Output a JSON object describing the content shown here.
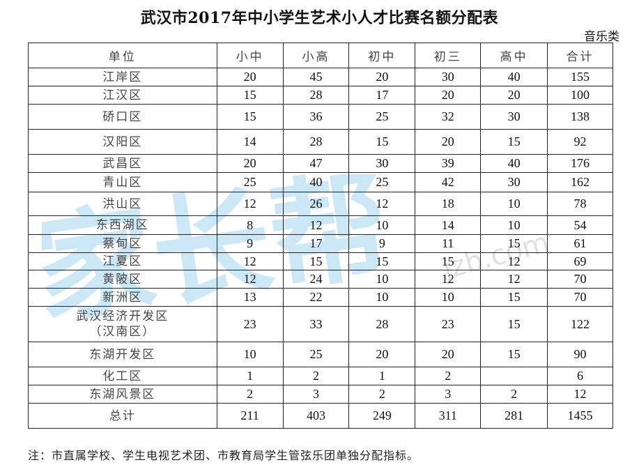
{
  "document": {
    "title": "武汉市2017年中小学生艺术小人才比赛名额分配表",
    "category": "音乐类",
    "note": "注：市直属学校、学生电视艺术团、市教育局学生管弦乐团单独分配指标。"
  },
  "table": {
    "headers": [
      "单位",
      "小中",
      "小高",
      "初中",
      "初三",
      "高中",
      "合计"
    ],
    "rows": [
      {
        "name": "江岸区",
        "values": [
          "20",
          "45",
          "20",
          "30",
          "40",
          "155"
        ]
      },
      {
        "name": "江汉区",
        "values": [
          "15",
          "28",
          "17",
          "20",
          "20",
          "100"
        ]
      },
      {
        "name": "硚口区",
        "values": [
          "15",
          "36",
          "25",
          "32",
          "30",
          "138"
        ]
      },
      {
        "name": "汉阳区",
        "values": [
          "14",
          "28",
          "15",
          "20",
          "15",
          "92"
        ]
      },
      {
        "name": "武昌区",
        "values": [
          "20",
          "47",
          "30",
          "39",
          "40",
          "176"
        ]
      },
      {
        "name": "青山区",
        "values": [
          "25",
          "40",
          "25",
          "42",
          "30",
          "162"
        ]
      },
      {
        "name": "洪山区",
        "values": [
          "12",
          "26",
          "12",
          "18",
          "10",
          "78"
        ]
      },
      {
        "name": "东西湖区",
        "values": [
          "8",
          "12",
          "10",
          "14",
          "10",
          "54"
        ]
      },
      {
        "name": "蔡甸区",
        "values": [
          "9",
          "17",
          "9",
          "11",
          "15",
          "61"
        ]
      },
      {
        "name": "江夏区",
        "values": [
          "12",
          "15",
          "15",
          "15",
          "12",
          "69"
        ]
      },
      {
        "name": "黄陂区",
        "values": [
          "12",
          "24",
          "10",
          "12",
          "12",
          "70"
        ]
      },
      {
        "name": "新洲区",
        "values": [
          "13",
          "22",
          "10",
          "10",
          "15",
          "70"
        ]
      },
      {
        "name": "武汉经济开发区\n（汉南区）",
        "values": [
          "23",
          "33",
          "28",
          "23",
          "15",
          "122"
        ]
      },
      {
        "name": "东湖开发区",
        "values": [
          "10",
          "25",
          "20",
          "20",
          "15",
          "90"
        ]
      },
      {
        "name": "化工区",
        "values": [
          "1",
          "2",
          "1",
          "2",
          "",
          "6"
        ]
      },
      {
        "name": "东湖风景区",
        "values": [
          "2",
          "3",
          "2",
          "3",
          "2",
          "12"
        ]
      },
      {
        "name": "总计",
        "values": [
          "211",
          "403",
          "249",
          "311",
          "281",
          "1455"
        ]
      }
    ]
  },
  "watermark": {
    "text": "家长帮",
    "site": "jzb.com",
    "color": "#3aa7e0"
  }
}
